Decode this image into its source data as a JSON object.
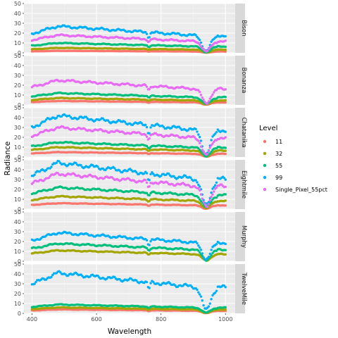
{
  "chart_data": {
    "type": "scatter",
    "xlabel": "Wavelength",
    "ylabel": "Radiance",
    "xlim": [
      375,
      1030
    ],
    "ylim": [
      0,
      50
    ],
    "x_ticks": [
      400,
      600,
      800,
      1000
    ],
    "y_ticks": [
      0,
      10,
      20,
      30,
      40,
      50
    ],
    "grid": true,
    "legend_title": "Level",
    "legend_position": "right",
    "series": [
      {
        "name": "11",
        "color": "#F8766D"
      },
      {
        "name": "32",
        "color": "#A3A500"
      },
      {
        "name": "55",
        "color": "#00BF7D"
      },
      {
        "name": "99",
        "color": "#00B0F6"
      },
      {
        "name": "Single_Pixel_55pct",
        "color": "#E76BF3"
      }
    ],
    "facets": [
      {
        "label": "Bison",
        "levels": {
          "11": 2,
          "32": 5,
          "55": 10,
          "99": 27,
          "Single_Pixel_55pct": 18
        }
      },
      {
        "label": "Bonanza",
        "levels": {
          "11": 4,
          "32": 7,
          "55": 12,
          "Single_Pixel_55pct": 25
        }
      },
      {
        "label": "Chatanika",
        "levels": {
          "11": 5,
          "32": 10,
          "55": 15,
          "99": 42,
          "Single_Pixel_55pct": 30
        }
      },
      {
        "label": "Eightmile",
        "levels": {
          "11": 6,
          "32": 13,
          "55": 22,
          "99": 47,
          "Single_Pixel_55pct": 36
        }
      },
      {
        "label": "Murphy",
        "levels": {
          "32": 11,
          "55": 18,
          "99": 29
        }
      },
      {
        "label": "TwelveMile",
        "levels": {
          "11": 4,
          "32": 6,
          "55": 9,
          "99": 41
        }
      }
    ]
  }
}
